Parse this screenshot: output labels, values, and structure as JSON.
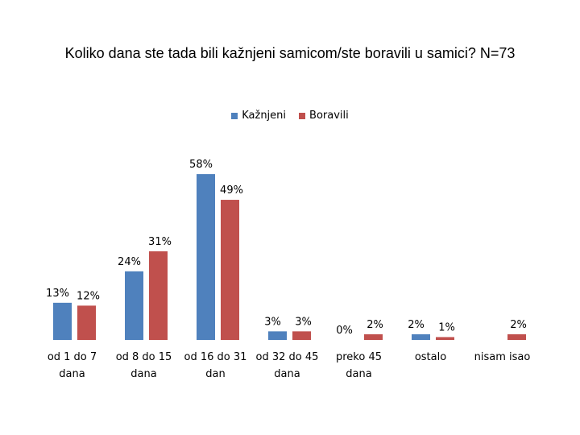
{
  "chart_data": {
    "type": "bar",
    "title": "Koliko dana ste tada bili kažnjeni samicom/ste boravili u samici? N=73",
    "categories": [
      [
        "od 1 do 7",
        "dana"
      ],
      [
        "od 8 do 15",
        "dana"
      ],
      [
        "od 16 do 31",
        "dan"
      ],
      [
        "od 32 do 45",
        "dana"
      ],
      [
        "preko 45",
        "dana"
      ],
      [
        "ostalo"
      ],
      [
        "nisam isao"
      ]
    ],
    "series": [
      {
        "name": "Kažnjeni",
        "color": "#4f81bd",
        "values": [
          13,
          24,
          58,
          3,
          0,
          2,
          null
        ]
      },
      {
        "name": "Boravili",
        "color": "#c0504d",
        "values": [
          12,
          31,
          49,
          3,
          2,
          1,
          2
        ]
      }
    ],
    "unit": "%",
    "legend_position": "top",
    "grid": false
  }
}
